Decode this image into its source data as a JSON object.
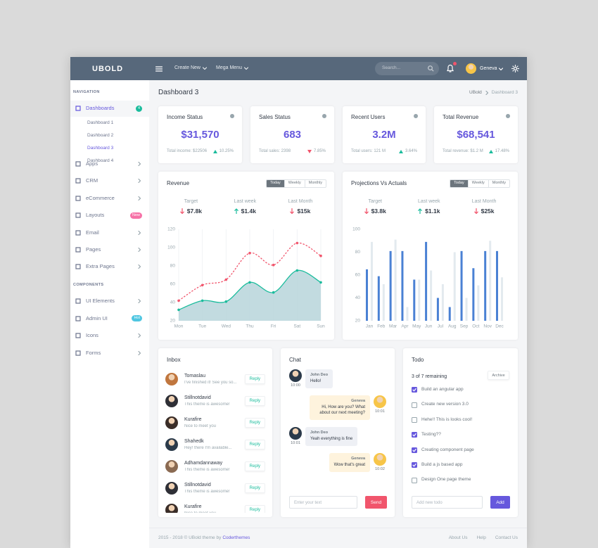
{
  "topbar": {
    "logo": "UBOLD",
    "menus": [
      "Create New",
      "Mega Menu"
    ],
    "search_placeholder": "Search...",
    "user": "Geneva"
  },
  "sidebar": {
    "sections": [
      {
        "title": "NAVIGATION",
        "items": [
          {
            "label": "Dashboards",
            "badge": "4",
            "badge_color": "#1abc9c",
            "active": true,
            "arrow": false,
            "children": [
              "Dashboard 1",
              "Dashboard 2",
              "Dashboard 3",
              "Dashboard 4"
            ],
            "active_child": 2
          },
          {
            "label": "Apps",
            "arrow": true
          },
          {
            "label": "CRM",
            "arrow": true
          },
          {
            "label": "eCommerce",
            "arrow": true
          },
          {
            "label": "Layouts",
            "badge": "New",
            "badge_color": "#f672a7",
            "arrow": false
          },
          {
            "label": "Email",
            "arrow": true
          },
          {
            "label": "Pages",
            "arrow": true
          },
          {
            "label": "Extra Pages",
            "arrow": true
          }
        ]
      },
      {
        "title": "COMPONENTS",
        "items": [
          {
            "label": "UI Elements",
            "arrow": true
          },
          {
            "label": "Admin UI",
            "badge": "Hot",
            "badge_color": "#4fc6e1",
            "arrow": false
          },
          {
            "label": "Icons",
            "arrow": true
          },
          {
            "label": "Forms",
            "arrow": true
          }
        ]
      }
    ]
  },
  "page": {
    "title": "Dashboard 3",
    "breadcrumb": [
      "UBold",
      "Dashboard 3"
    ]
  },
  "stats": [
    {
      "title": "Income Status",
      "value": "$31,570",
      "footer": "Total income: $22506",
      "change": "10.25%",
      "trend": "up"
    },
    {
      "title": "Sales Status",
      "value": "683",
      "footer": "Total sales: 2398",
      "change": "7.85%",
      "trend": "down"
    },
    {
      "title": "Recent Users",
      "value": "3.2M",
      "footer": "Total users: 121 M",
      "change": "3.64%",
      "trend": "up"
    },
    {
      "title": "Total Revenue",
      "value": "$68,541",
      "footer": "Total revenue: $1.2 M",
      "change": "17.48%",
      "trend": "up"
    }
  ],
  "chart_panels": [
    {
      "tabs": [
        "Today",
        "Weekly",
        "Monthly"
      ],
      "active_tab": 0,
      "stats": [
        {
          "label": "Target",
          "value": "$7.8k",
          "trend": "down"
        },
        {
          "label": "Last week",
          "value": "$1.4k",
          "trend": "up"
        },
        {
          "label": "Last Month",
          "value": "$15k",
          "trend": "down"
        }
      ]
    },
    {
      "tabs": [
        "Today",
        "Weekly",
        "Monthly"
      ],
      "active_tab": 0,
      "stats": [
        {
          "label": "Target",
          "value": "$3.8k",
          "trend": "down"
        },
        {
          "label": "Last week",
          "value": "$1.1k",
          "trend": "up"
        },
        {
          "label": "Last Month",
          "value": "$25k",
          "trend": "down"
        }
      ]
    }
  ],
  "chart_data": [
    {
      "type": "line",
      "title": "Revenue",
      "categories": [
        "Mon",
        "Tue",
        "Wed",
        "Thu",
        "Fri",
        "Sat",
        "Sun"
      ],
      "series": [
        {
          "color": "#1abc9c",
          "area": true,
          "fill": "#b7d5da",
          "values": [
            32,
            42,
            41,
            62,
            51,
            75,
            62
          ]
        },
        {
          "color": "#f1556c",
          "dashed": true,
          "values": [
            42,
            59,
            65,
            94,
            81,
            105,
            91
          ]
        }
      ],
      "ylim": [
        20,
        120
      ],
      "yticks": [
        20,
        40,
        60,
        80,
        100,
        120
      ],
      "grid": true
    },
    {
      "type": "bar",
      "title": "Projections Vs Actuals",
      "categories": [
        "Jan",
        "Feb",
        "Mar",
        "Apr",
        "May",
        "Jun",
        "Jul",
        "Aug",
        "Sep",
        "Oct",
        "Nov",
        "Dec"
      ],
      "series": [
        {
          "color": "#4a81d4",
          "values": [
            65,
            59,
            81,
            81,
            56,
            89,
            40,
            32,
            81,
            66,
            81,
            81
          ]
        },
        {
          "color": "#e3eaef",
          "values": [
            89,
            52,
            91,
            32,
            56,
            64,
            52,
            80,
            40,
            51,
            90,
            58
          ]
        }
      ],
      "ylim": [
        20,
        100
      ],
      "yticks": [
        20,
        40,
        60,
        80,
        100
      ],
      "grid": false
    }
  ],
  "inbox": {
    "title": "Inbox",
    "button": "Reply",
    "messages": [
      {
        "name": "Tomaslau",
        "text": "I've finished it! See you so..."
      },
      {
        "name": "Stillnotdavid",
        "text": "This theme is awesome!"
      },
      {
        "name": "Kurafire",
        "text": "Nice to meet you"
      },
      {
        "name": "Shahedk",
        "text": "Hey! there I'm available..."
      },
      {
        "name": "Adhamdannaway",
        "text": "This theme is awesome!"
      },
      {
        "name": "Stillnotdavid",
        "text": "This theme is awesome!"
      },
      {
        "name": "Kurafire",
        "text": "Nice to meet you"
      }
    ]
  },
  "chat": {
    "title": "Chat",
    "placeholder": "Enter your text",
    "button": "Send",
    "messages": [
      {
        "name": "John Deo",
        "text": "Hello!",
        "time": "10:00",
        "side": "left"
      },
      {
        "name": "Geneva",
        "text": "Hi, How are you? What about our next meeting?",
        "time": "10:01",
        "side": "right"
      },
      {
        "name": "John Deo",
        "text": "Yeah everything is fine",
        "time": "10:01",
        "side": "left"
      },
      {
        "name": "Geneva",
        "text": "Wow that's great",
        "time": "10:02",
        "side": "right"
      }
    ]
  },
  "todo": {
    "title": "Todo",
    "remaining": "3 of 7 remaining",
    "archive": "Archive",
    "placeholder": "Add new todo",
    "button": "Add",
    "items": [
      {
        "text": "Build an angular app",
        "done": true
      },
      {
        "text": "Create new version 3.0",
        "done": false
      },
      {
        "text": "Hehe!! This is looks cool!",
        "done": false
      },
      {
        "text": "Testing??",
        "done": true
      },
      {
        "text": "Creating component page",
        "done": true
      },
      {
        "text": "Build a js based app",
        "done": true
      },
      {
        "text": "Design One page theme",
        "done": false
      }
    ]
  },
  "footer": {
    "copyright": "2015 - 2018 © UBold theme by",
    "brand": "Coderthemes",
    "links": [
      "About Us",
      "Help",
      "Contact Us"
    ]
  }
}
